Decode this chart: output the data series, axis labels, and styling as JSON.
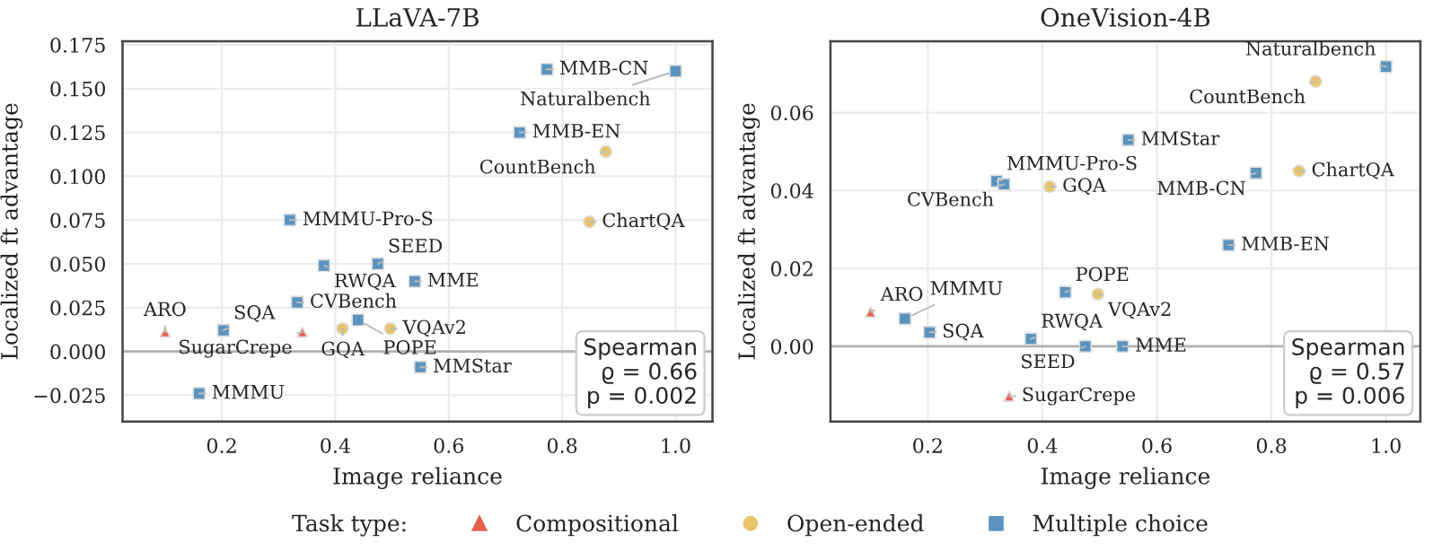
{
  "chart_data": [
    {
      "type": "scatter",
      "title": "LLaVA-7B",
      "xlabel": "Image reliance",
      "ylabel": "Localized ft advantage",
      "xlim": [
        0.025,
        1.065
      ],
      "ylim": [
        -0.04,
        0.177
      ],
      "xticks": [
        {
          "value": 0.2,
          "label": "0.2"
        },
        {
          "value": 0.4,
          "label": "0.4"
        },
        {
          "value": 0.6,
          "label": "0.6"
        },
        {
          "value": 0.8,
          "label": "0.8"
        },
        {
          "value": 1.0,
          "label": "1.0"
        }
      ],
      "yticks": [
        {
          "value": -0.025,
          "label": "−0.025"
        },
        {
          "value": 0,
          "label": "0.000"
        },
        {
          "value": 0.025,
          "label": "0.025"
        },
        {
          "value": 0.05,
          "label": "0.050"
        },
        {
          "value": 0.075,
          "label": "0.075"
        },
        {
          "value": 0.1,
          "label": "0.100"
        },
        {
          "value": 0.125,
          "label": "0.125"
        },
        {
          "value": 0.15,
          "label": "0.150"
        },
        {
          "value": 0.175,
          "label": "0.175"
        }
      ],
      "grid": true,
      "legend": "bottom",
      "legend_title": "Task type:",
      "ref_lines": [
        {
          "axis": "y",
          "value": 0,
          "color": "#b0b0b0"
        }
      ],
      "series": [
        {
          "name": "Compositional",
          "color": "#e8604c",
          "marker": "triangle",
          "x": [
            0.1,
            0.342
          ],
          "values": [
            0.011,
            0.011
          ]
        },
        {
          "name": "Open-ended",
          "color": "#e9c46a",
          "marker": "circle",
          "x": [
            0.877,
            0.848,
            0.497,
            0.413
          ],
          "values": [
            0.114,
            0.074,
            0.013,
            0.013
          ]
        },
        {
          "name": "Multiple choice",
          "color": "#5b93bf",
          "marker": "square",
          "x": [
            0.773,
            1.0,
            0.725,
            0.32,
            0.38,
            0.475,
            0.54,
            0.333,
            0.44,
            0.203,
            0.55,
            0.16
          ],
          "values": [
            0.161,
            0.16,
            0.125,
            0.075,
            0.049,
            0.05,
            0.04,
            0.028,
            0.018,
            0.012,
            -0.009,
            -0.024
          ]
        }
      ],
      "annotations": [
        {
          "text": "MMB-CN",
          "x": 0.773,
          "y": 0.161
        },
        {
          "text": "Naturalbench",
          "x": 1.0,
          "y": 0.16
        },
        {
          "text": "MMB-EN",
          "x": 0.725,
          "y": 0.125
        },
        {
          "text": "CountBench",
          "x": 0.877,
          "y": 0.114
        },
        {
          "text": "MMMU-Pro-S",
          "x": 0.32,
          "y": 0.075
        },
        {
          "text": "ChartQA",
          "x": 0.848,
          "y": 0.074
        },
        {
          "text": "RWQA",
          "x": 0.38,
          "y": 0.049
        },
        {
          "text": "SEED",
          "x": 0.475,
          "y": 0.05
        },
        {
          "text": "MME",
          "x": 0.54,
          "y": 0.04
        },
        {
          "text": "CVBench",
          "x": 0.333,
          "y": 0.028
        },
        {
          "text": "POPE",
          "x": 0.44,
          "y": 0.018
        },
        {
          "text": "VQAv2",
          "x": 0.497,
          "y": 0.013
        },
        {
          "text": "GQA",
          "x": 0.413,
          "y": 0.013
        },
        {
          "text": "SugarCrepe",
          "x": 0.342,
          "y": 0.011
        },
        {
          "text": "ARO",
          "x": 0.1,
          "y": 0.011
        },
        {
          "text": "SQA",
          "x": 0.203,
          "y": 0.012
        },
        {
          "text": "MMStar",
          "x": 0.55,
          "y": -0.009
        },
        {
          "text": "MMMU",
          "x": 0.16,
          "y": -0.024
        },
        "Spearman\nϱ = 0.66\np = 0.002"
      ]
    },
    {
      "type": "scatter",
      "title": "OneVision-4B",
      "xlabel": "Image reliance",
      "ylabel": "Localized ft advantage",
      "xlim": [
        0.03,
        1.06
      ],
      "ylim": [
        -0.0193,
        0.0783
      ],
      "xticks": [
        {
          "value": 0.2,
          "label": "0.2"
        },
        {
          "value": 0.4,
          "label": "0.4"
        },
        {
          "value": 0.6,
          "label": "0.6"
        },
        {
          "value": 0.8,
          "label": "0.8"
        },
        {
          "value": 1.0,
          "label": "1.0"
        }
      ],
      "yticks": [
        {
          "value": 0,
          "label": "0.00"
        },
        {
          "value": 0.02,
          "label": "0.02"
        },
        {
          "value": 0.04,
          "label": "0.04"
        },
        {
          "value": 0.06,
          "label": "0.06"
        }
      ],
      "grid": true,
      "ref_lines": [
        {
          "axis": "y",
          "value": 0,
          "color": "#b0b0b0"
        }
      ],
      "series": [
        {
          "name": "Compositional",
          "color": "#e8604c",
          "marker": "triangle",
          "x": [
            0.1,
            0.342
          ],
          "values": [
            0.0088,
            -0.0128
          ]
        },
        {
          "name": "Open-ended",
          "color": "#e9c46a",
          "marker": "circle",
          "x": [
            0.877,
            0.848,
            0.413,
            0.497
          ],
          "values": [
            0.068,
            0.045,
            0.041,
            0.0134
          ]
        },
        {
          "name": "Multiple choice",
          "color": "#5b93bf",
          "marker": "square",
          "x": [
            1.0,
            0.55,
            0.773,
            0.32,
            0.333,
            0.725,
            0.44,
            0.16,
            0.203,
            0.38,
            0.475,
            0.54
          ],
          "values": [
            0.0718,
            0.053,
            0.0445,
            0.0424,
            0.0416,
            0.026,
            0.0139,
            0.0071,
            0.0036,
            0.0019,
            0.0,
            0.0
          ]
        }
      ],
      "annotations": [
        {
          "text": "Naturalbench",
          "x": 1.0,
          "y": 0.0718
        },
        {
          "text": "CountBench",
          "x": 0.877,
          "y": 0.068
        },
        {
          "text": "MMStar",
          "x": 0.55,
          "y": 0.053
        },
        {
          "text": "ChartQA",
          "x": 0.848,
          "y": 0.045
        },
        {
          "text": "MMB-CN",
          "x": 0.773,
          "y": 0.0445
        },
        {
          "text": "MMMU-Pro-S",
          "x": 0.32,
          "y": 0.0424
        },
        {
          "text": "CVBench",
          "x": 0.333,
          "y": 0.0416
        },
        {
          "text": "GQA",
          "x": 0.413,
          "y": 0.041
        },
        {
          "text": "MMB-EN",
          "x": 0.725,
          "y": 0.026
        },
        {
          "text": "POPE",
          "x": 0.44,
          "y": 0.0139
        },
        {
          "text": "VQAv2",
          "x": 0.497,
          "y": 0.0134
        },
        {
          "text": "ARO",
          "x": 0.1,
          "y": 0.0088
        },
        {
          "text": "MMMU",
          "x": 0.16,
          "y": 0.0071
        },
        {
          "text": "SQA",
          "x": 0.203,
          "y": 0.0036
        },
        {
          "text": "RWQA",
          "x": 0.38,
          "y": 0.0019
        },
        {
          "text": "SEED",
          "x": 0.475,
          "y": 0.0
        },
        {
          "text": "MME",
          "x": 0.54,
          "y": 0.0
        },
        {
          "text": "SugarCrepe",
          "x": 0.342,
          "y": -0.0128
        },
        "Spearman\nϱ = 0.57\np = 0.006"
      ]
    }
  ]
}
